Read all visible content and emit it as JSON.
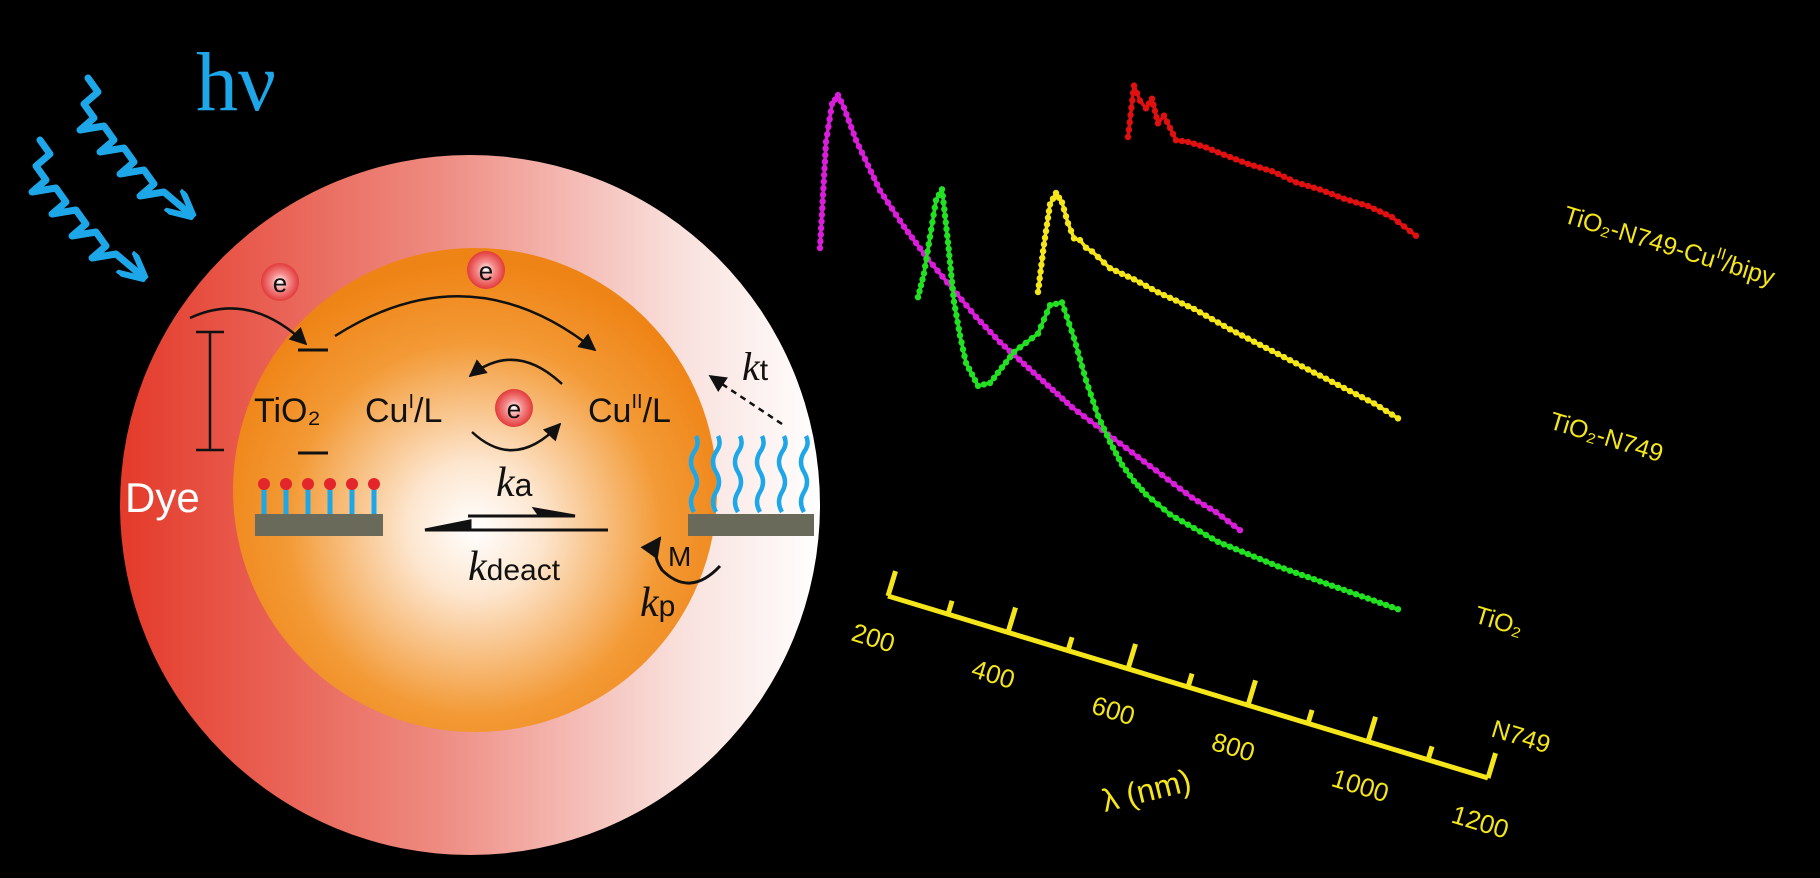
{
  "diagram": {
    "hv": "hν",
    "electron": "e",
    "tio2": "TiO₂",
    "cu1_base": "Cu",
    "cu1_sup": "I",
    "cu1_tail": "/L",
    "cu2_base": "Cu",
    "cu2_sup": "II",
    "cu2_tail": "/L",
    "dye": "Dye",
    "ka_k": "k",
    "ka_sub": "a",
    "kdeact_k": "k",
    "kdeact_sub": "deact",
    "kt_k": "k",
    "kt_sub": "t",
    "kp_k": "k",
    "kp_sub": "p",
    "m": "M"
  },
  "colors": {
    "photon": "#1ea7e8",
    "outer_sphere": "#e84a36",
    "inner_sphere": "#f08a1c",
    "tio2_n749_cu": "#e01010",
    "tio2_n749": "#f5e61b",
    "tio2": "#d91ed9",
    "n749": "#22e022",
    "axis": "#f5e61b"
  },
  "chart_data": {
    "type": "line",
    "xlabel": "λ (nm)",
    "xticks": [
      200,
      400,
      600,
      800,
      1000,
      1200
    ],
    "xlim": [
      200,
      1200
    ],
    "series": [
      {
        "name": "TiO₂-N749-CuII/bipy",
        "name_base": "TiO₂-N749-Cu",
        "name_sup": "II",
        "name_tail": "/bipy",
        "x": [
          600,
          610,
          620,
          630,
          640,
          650,
          660,
          680,
          700,
          730,
          760,
          800,
          840,
          880,
          920,
          960,
          1000,
          1040,
          1080
        ],
        "y": [
          0.72,
          1.0,
          0.93,
          0.9,
          0.96,
          0.84,
          0.89,
          0.78,
          0.79,
          0.79,
          0.78,
          0.77,
          0.77,
          0.75,
          0.75,
          0.74,
          0.74,
          0.72,
          0.66
        ]
      },
      {
        "name": "TiO₂-N749",
        "x": [
          500,
          510,
          520,
          530,
          540,
          550,
          560,
          570,
          580,
          590,
          600,
          620,
          660,
          700,
          760,
          820,
          880,
          940,
          1000,
          1060,
          1100
        ],
        "y": [
          0.44,
          0.7,
          0.92,
          0.99,
          0.95,
          0.85,
          0.78,
          0.78,
          0.75,
          0.74,
          0.72,
          0.68,
          0.66,
          0.63,
          0.6,
          0.55,
          0.51,
          0.47,
          0.43,
          0.39,
          0.35
        ]
      },
      {
        "name": "TiO₂",
        "x": [
          200,
          205,
          210,
          220,
          230,
          240,
          260,
          280,
          300,
          340,
          380,
          420,
          460,
          500,
          540,
          580,
          620,
          660,
          700,
          740,
          780,
          820,
          860,
          900
        ],
        "y": [
          0.55,
          0.7,
          0.85,
          0.96,
          0.99,
          0.96,
          0.88,
          0.82,
          0.76,
          0.68,
          0.61,
          0.55,
          0.49,
          0.44,
          0.4,
          0.36,
          0.32,
          0.29,
          0.26,
          0.23,
          0.2,
          0.17,
          0.15,
          0.12
        ]
      },
      {
        "name": "N749",
        "x": [
          300,
          310,
          320,
          330,
          340,
          350,
          360,
          370,
          380,
          400,
          420,
          440,
          460,
          480,
          500,
          520,
          540,
          560,
          580,
          600,
          620,
          640,
          660,
          680,
          700,
          720,
          760,
          800,
          850,
          900,
          950,
          1000,
          1050,
          1100
        ],
        "y": [
          0.6,
          0.68,
          0.8,
          0.92,
          0.96,
          0.8,
          0.62,
          0.52,
          0.44,
          0.38,
          0.4,
          0.46,
          0.52,
          0.56,
          0.6,
          0.7,
          0.72,
          0.62,
          0.5,
          0.4,
          0.33,
          0.27,
          0.23,
          0.2,
          0.18,
          0.16,
          0.14,
          0.12,
          0.11,
          0.1,
          0.095,
          0.09,
          0.085,
          0.08
        ]
      }
    ]
  }
}
